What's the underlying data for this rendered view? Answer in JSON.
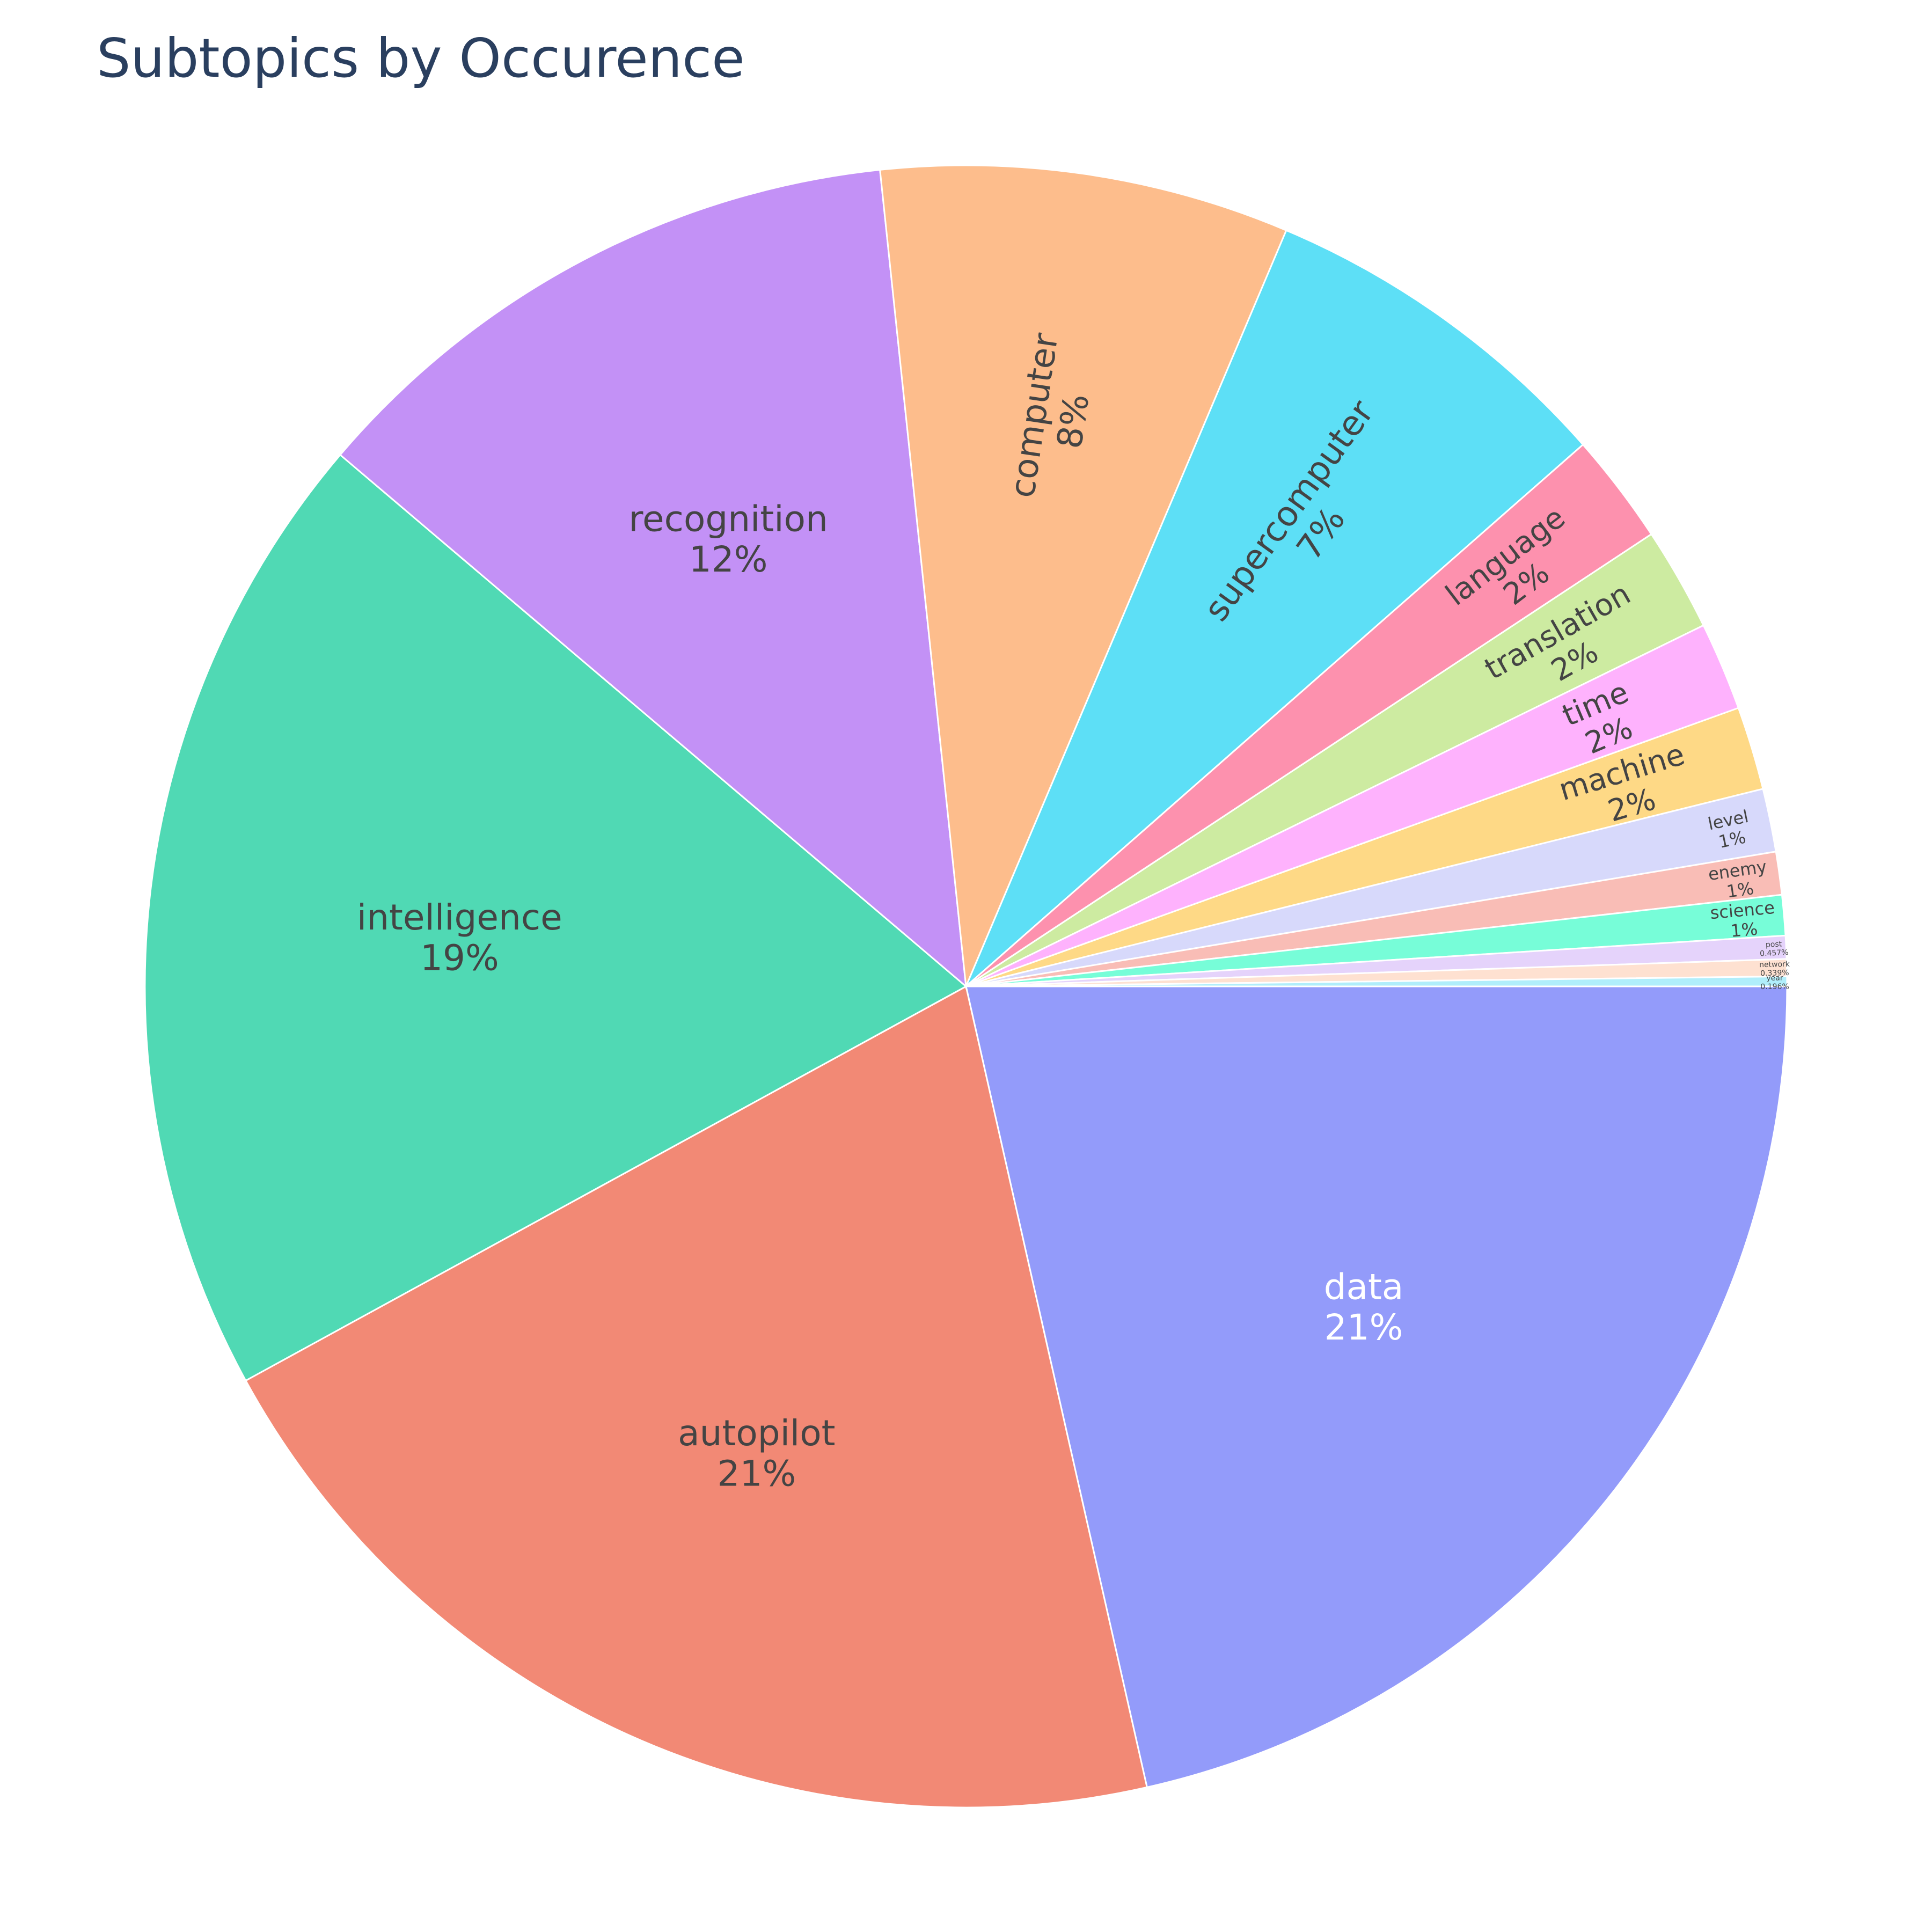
{
  "chart_data": {
    "type": "pie",
    "title": "Subtopics by Occurence",
    "sort": "descending, clockwise from 3 o'clock",
    "slices": [
      {
        "label": "data",
        "value": 21.6,
        "text": "21%",
        "color": "#939bfa"
      },
      {
        "label": "autopilot",
        "value": 20.7,
        "text": "21%",
        "color": "#f28975"
      },
      {
        "label": "intelligence",
        "value": 19.3,
        "text": "19%",
        "color": "#50d9b4"
      },
      {
        "label": "recognition",
        "value": 12.2,
        "text": "12%",
        "color": "#c391f6"
      },
      {
        "label": "computer",
        "value": 8.1,
        "text": "8%",
        "color": "#fdbd8c"
      },
      {
        "label": "supercomputer",
        "value": 7.2,
        "text": "7%",
        "color": "#5ddff6"
      },
      {
        "label": "language",
        "value": 2.2,
        "text": "2%",
        "color": "#fd91ae"
      },
      {
        "label": "translation",
        "value": 2.05,
        "text": "2%",
        "color": "#cdeba1"
      },
      {
        "label": "time",
        "value": 1.75,
        "text": "2%",
        "color": "#feb2fd"
      },
      {
        "label": "machine",
        "value": 1.65,
        "text": "2%",
        "color": "#fed986"
      },
      {
        "label": "level",
        "value": 1.25,
        "text": "1%",
        "color": "#d7d9fb"
      },
      {
        "label": "enemy",
        "value": 0.85,
        "text": "1%",
        "color": "#f9bdb6"
      },
      {
        "label": "science",
        "value": 0.8,
        "text": "1%",
        "color": "#77fdd8"
      },
      {
        "label": "post",
        "value": 0.457,
        "text": "0.457%",
        "color": "#e5d3fb"
      },
      {
        "label": "network",
        "value": 0.339,
        "text": "0.339%",
        "color": "#fee1d1"
      },
      {
        "label": "year",
        "value": 0.196,
        "text": "0.196%",
        "color": "#b0eefb"
      }
    ]
  }
}
